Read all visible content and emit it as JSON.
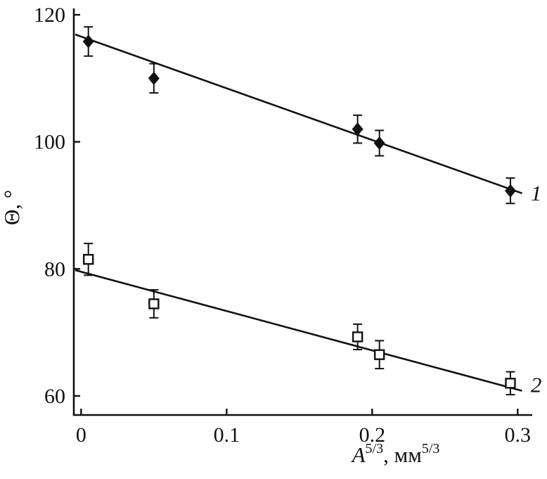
{
  "figure": {
    "background": "#ffffff",
    "ink": "#111111"
  },
  "chart_data": {
    "type": "scatter",
    "title": "",
    "ylabel": "Θ, °",
    "xlabel_plain": "A5/3, мм5/3",
    "xlabel_parts": [
      {
        "t": "A",
        "italic": true
      },
      {
        "t": "5/3",
        "sup": true
      },
      {
        "t": ", мм"
      },
      {
        "t": "5/3",
        "sup": true
      }
    ],
    "xlim": [
      -0.005,
      0.31
    ],
    "ylim": [
      57,
      121
    ],
    "grid": false,
    "legend_position": "inline-right",
    "xticks": [
      {
        "v": 0,
        "label": "0"
      },
      {
        "v": 0.1,
        "label": "0.1"
      },
      {
        "v": 0.2,
        "label": "0.2"
      },
      {
        "v": 0.3,
        "label": "0.3"
      }
    ],
    "yticks": [
      {
        "v": 60,
        "label": "60"
      },
      {
        "v": 80,
        "label": "80"
      },
      {
        "v": 100,
        "label": "100"
      },
      {
        "v": 120,
        "label": "120"
      }
    ],
    "series": [
      {
        "name": "1",
        "marker": "filled-diamond",
        "label": "1",
        "label_at": {
          "x": 0.309,
          "y": 92.0
        },
        "fit_line": {
          "x1": -0.004,
          "y1": 116.9,
          "x2": 0.303,
          "y2": 91.9
        },
        "points": [
          {
            "x": 0.005,
            "y": 115.8,
            "err": 2.3
          },
          {
            "x": 0.05,
            "y": 110.0,
            "err": 2.3
          },
          {
            "x": 0.19,
            "y": 102.0,
            "err": 2.2
          },
          {
            "x": 0.205,
            "y": 99.8,
            "err": 2.0
          },
          {
            "x": 0.295,
            "y": 92.3,
            "err": 2.0
          }
        ]
      },
      {
        "name": "2",
        "marker": "open-square",
        "label": "2",
        "label_at": {
          "x": 0.309,
          "y": 61.8
        },
        "fit_line": {
          "x1": -0.004,
          "y1": 79.8,
          "x2": 0.303,
          "y2": 60.8
        },
        "points": [
          {
            "x": 0.005,
            "y": 81.5,
            "err": 2.5
          },
          {
            "x": 0.05,
            "y": 74.5,
            "err": 2.2
          },
          {
            "x": 0.19,
            "y": 69.3,
            "err": 2.0
          },
          {
            "x": 0.205,
            "y": 66.5,
            "err": 2.2
          },
          {
            "x": 0.295,
            "y": 62.0,
            "err": 1.8
          }
        ]
      }
    ]
  }
}
